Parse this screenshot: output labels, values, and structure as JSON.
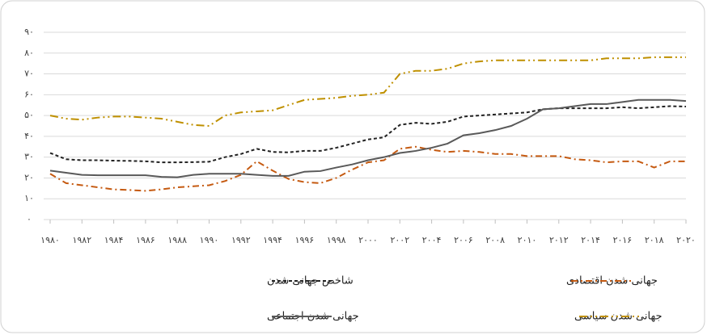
{
  "chart_data": {
    "type": "line",
    "x": [
      1980,
      1981,
      1982,
      1983,
      1984,
      1985,
      1986,
      1987,
      1988,
      1989,
      1990,
      1991,
      1992,
      1993,
      1994,
      1995,
      1996,
      1997,
      1998,
      1999,
      2000,
      2001,
      2002,
      2003,
      2004,
      2005,
      2006,
      2007,
      2008,
      2009,
      2010,
      2011,
      2012,
      2013,
      2014,
      2015,
      2016,
      2017,
      2018,
      2019,
      2020
    ],
    "series": [
      {
        "name": "شاخص جهانی شدن",
        "color": "#222222",
        "dash": "4,3",
        "values": [
          32,
          29,
          28.5,
          28.5,
          28.3,
          28.2,
          28,
          27.5,
          27.5,
          27.6,
          27.8,
          30,
          31.5,
          34,
          32.5,
          32.3,
          33,
          33,
          34.5,
          36.5,
          38.5,
          39.5,
          45.5,
          46.5,
          46,
          47,
          49.5,
          50,
          50.5,
          51,
          51.5,
          53,
          53.5,
          53.5,
          53.5,
          53.5,
          54,
          53.5,
          54,
          54.5,
          54.3
        ]
      },
      {
        "name": "جهانی شدن اقتصادی",
        "color": "#c55a11",
        "dash": "8,4,2,4",
        "values": [
          22,
          17.5,
          16.5,
          15.5,
          14.5,
          14.2,
          13.8,
          14.5,
          15.5,
          16,
          16.5,
          18.5,
          21.5,
          28,
          23.5,
          19.5,
          18,
          17.5,
          20,
          24,
          27.5,
          28.5,
          34,
          35,
          33.5,
          32.5,
          33,
          32.5,
          31.5,
          31.5,
          30.5,
          30.5,
          30.5,
          29,
          28.5,
          27.5,
          28,
          28,
          25,
          28,
          28
        ]
      },
      {
        "name": "جهانی شدن اجتماعی",
        "color": "#595959",
        "dash": "",
        "values": [
          23.5,
          22.5,
          21.5,
          21.3,
          21.3,
          21.3,
          21.3,
          20.5,
          20.3,
          21.5,
          22,
          22,
          22,
          21.5,
          21,
          21,
          23,
          23.3,
          25,
          26.5,
          28.5,
          30,
          32,
          33,
          34.5,
          36.5,
          40.5,
          41.5,
          43,
          45,
          48.5,
          53,
          53.5,
          54.5,
          55.5,
          55.5,
          56.5,
          57.5,
          57.5,
          57.5,
          57
        ]
      },
      {
        "name": "جهانی شدن سیاسی",
        "color": "#bf9000",
        "dash": "10,4,2,4,2,4",
        "values": [
          50,
          48.5,
          48,
          49,
          49.5,
          49.5,
          49,
          48.5,
          47,
          45.5,
          45,
          50,
          51.5,
          52,
          52.5,
          55,
          57.5,
          58,
          58.5,
          59.5,
          60,
          61,
          70,
          71.5,
          71.5,
          72.5,
          75,
          76,
          76.5,
          76.5,
          76.5,
          76.5,
          76.5,
          76.5,
          76.5,
          77.5,
          77.5,
          77.5,
          78,
          78,
          78
        ]
      }
    ],
    "xlim": [
      1980,
      2020
    ],
    "xticks": [
      {
        "value": 1980,
        "label": "۱۹۸۰"
      },
      {
        "value": 1982,
        "label": "۱۹۸۲"
      },
      {
        "value": 1984,
        "label": "۱۹۸۴"
      },
      {
        "value": 1986,
        "label": "۱۹۸۶"
      },
      {
        "value": 1988,
        "label": "۱۹۸۸"
      },
      {
        "value": 1990,
        "label": "۱۹۹۰"
      },
      {
        "value": 1992,
        "label": "۱۹۹۲"
      },
      {
        "value": 1994,
        "label": "۱۹۹۴"
      },
      {
        "value": 1996,
        "label": "۱۹۹۶"
      },
      {
        "value": 1998,
        "label": "۱۹۹۸"
      },
      {
        "value": 2000,
        "label": "۲۰۰۰"
      },
      {
        "value": 2002,
        "label": "۲۰۰۲"
      },
      {
        "value": 2004,
        "label": "۲۰۰۴"
      },
      {
        "value": 2006,
        "label": "۲۰۰۶"
      },
      {
        "value": 2008,
        "label": "۲۰۰۸"
      },
      {
        "value": 2010,
        "label": "۲۰۱۰"
      },
      {
        "value": 2012,
        "label": "۲۰۱۲"
      },
      {
        "value": 2014,
        "label": "۲۰۱۴"
      },
      {
        "value": 2016,
        "label": "۲۰۱۶"
      },
      {
        "value": 2018,
        "label": "۲۰۱۸"
      },
      {
        "value": 2020,
        "label": "۲۰۲۰"
      }
    ],
    "ylim": [
      0,
      90
    ],
    "yticks": [
      {
        "value": 0,
        "label": "۰"
      },
      {
        "value": 10,
        "label": "۱۰"
      },
      {
        "value": 20,
        "label": "۲۰"
      },
      {
        "value": 30,
        "label": "۳۰"
      },
      {
        "value": 40,
        "label": "۴۰"
      },
      {
        "value": 50,
        "label": "۵۰"
      },
      {
        "value": 60,
        "label": "۶۰"
      },
      {
        "value": 70,
        "label": "۷۰"
      },
      {
        "value": 80,
        "label": "۸۰"
      },
      {
        "value": 90,
        "label": "۹۰"
      }
    ],
    "grid": true
  }
}
